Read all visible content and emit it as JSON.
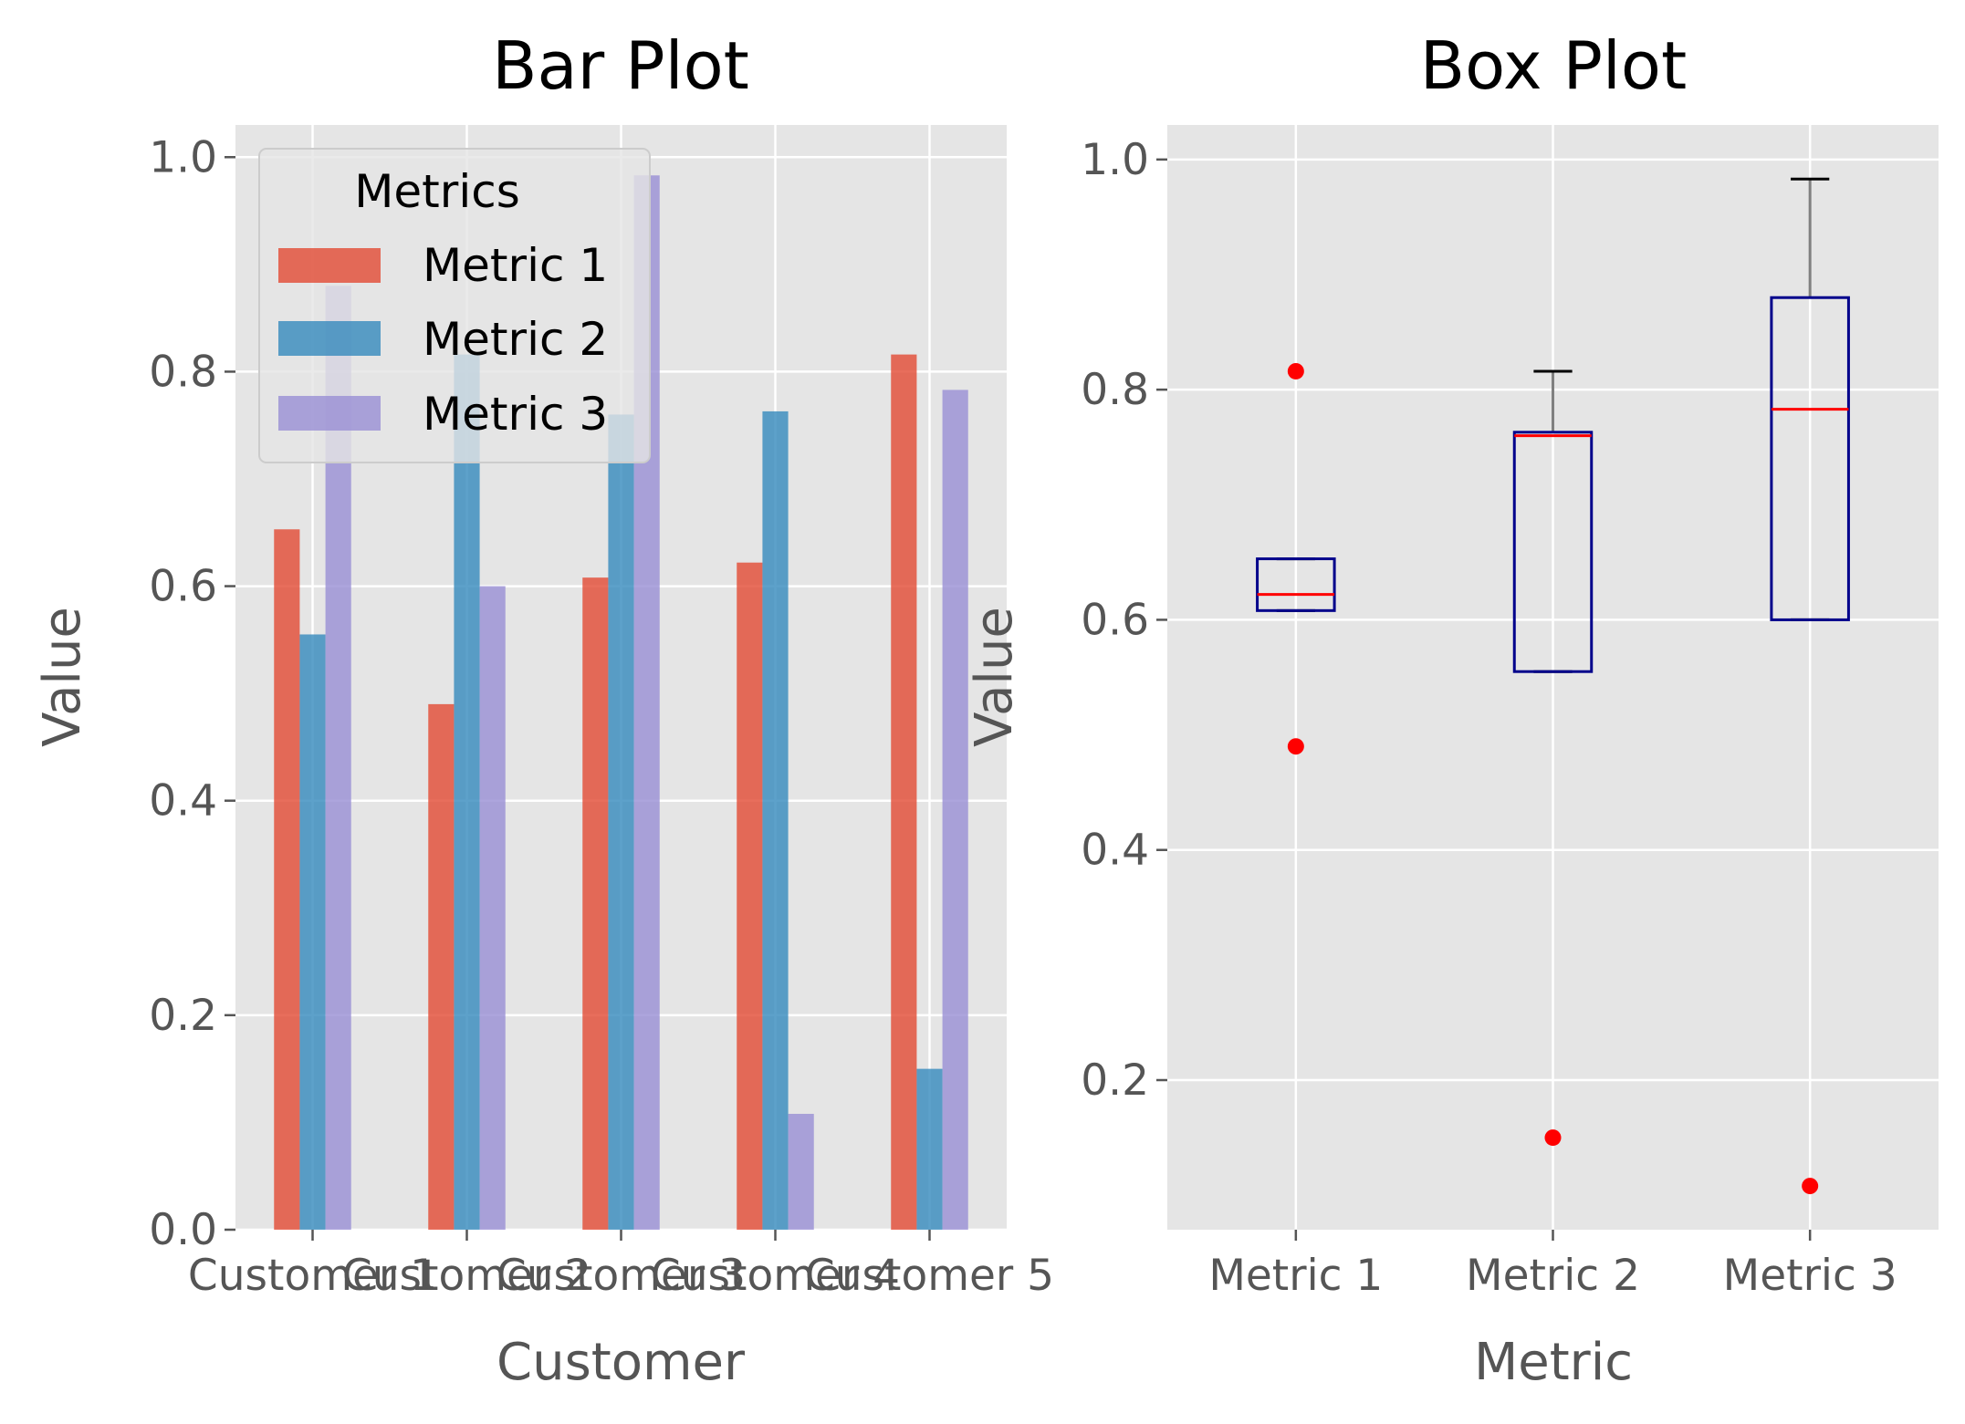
{
  "colors": {
    "panel_bg": "#e5e5e5",
    "grid": "#ffffff",
    "tick": "#555555",
    "metric_1": "#e24a33",
    "metric_2": "#348abd",
    "metric_3": "#988ed5",
    "box_edge": "#00008b",
    "median": "#ff0000",
    "whisker": "#808080",
    "cap": "#000000",
    "flier": "#ff0000"
  },
  "chart_data": [
    {
      "type": "bar",
      "title": "Bar Plot",
      "xlabel": "Customer",
      "ylabel": "Value",
      "ylim": [
        0,
        1.03
      ],
      "yticks": [
        "0.0",
        "0.2",
        "0.4",
        "0.6",
        "0.8",
        "1.0"
      ],
      "categories": [
        "Customer 1",
        "Customer 2",
        "Customer 3",
        "Customer 4",
        "Customer 5"
      ],
      "series": [
        {
          "name": "Metric 1",
          "color": "#e24a33",
          "values": [
            0.653,
            0.49,
            0.608,
            0.622,
            0.816
          ]
        },
        {
          "name": "Metric 2",
          "color": "#348abd",
          "values": [
            0.555,
            0.816,
            0.76,
            0.763,
            0.15
          ]
        },
        {
          "name": "Metric 3",
          "color": "#988ed5",
          "values": [
            0.88,
            0.6,
            0.983,
            0.108,
            0.783
          ]
        }
      ],
      "legend": {
        "title": "Metrics",
        "position": "upper-left"
      },
      "grid": true
    },
    {
      "type": "box",
      "title": "Box Plot",
      "xlabel": "Metric",
      "ylabel": "Value",
      "ylim": [
        0.07,
        1.03
      ],
      "yticks": [
        "0.2",
        "0.4",
        "0.6",
        "0.8",
        "1.0"
      ],
      "categories": [
        "Metric 1",
        "Metric 2",
        "Metric 3"
      ],
      "boxes": [
        {
          "name": "Metric 1",
          "whisker_low": 0.608,
          "q1": 0.608,
          "median": 0.622,
          "q3": 0.653,
          "whisker_high": 0.653,
          "fliers": [
            0.816,
            0.49
          ]
        },
        {
          "name": "Metric 2",
          "whisker_low": 0.555,
          "q1": 0.555,
          "median": 0.76,
          "q3": 0.763,
          "whisker_high": 0.816,
          "fliers": [
            0.15
          ]
        },
        {
          "name": "Metric 3",
          "whisker_low": 0.6,
          "q1": 0.6,
          "median": 0.783,
          "q3": 0.88,
          "whisker_high": 0.983,
          "fliers": [
            0.108
          ]
        }
      ],
      "grid": true
    }
  ]
}
